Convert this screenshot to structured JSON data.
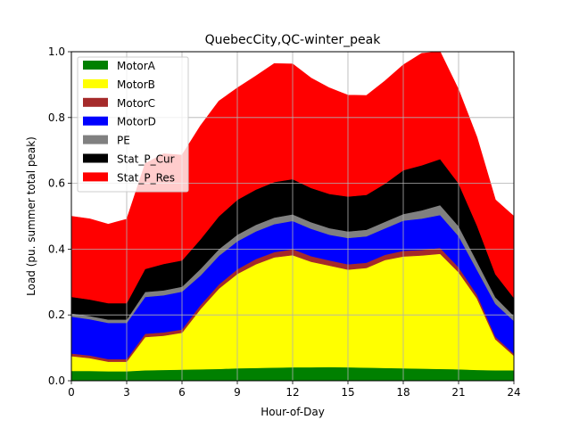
{
  "chart_data": {
    "type": "area",
    "stacked": true,
    "title": "QuebecCity,QC-winter_peak",
    "xlabel": "Hour-of-Day",
    "ylabel": "Load (pu. summer total peak)",
    "xlim": [
      0,
      24
    ],
    "ylim": [
      0,
      1.0
    ],
    "xticks": [
      0,
      3,
      6,
      9,
      12,
      15,
      18,
      21,
      24
    ],
    "yticks": [
      0.0,
      0.2,
      0.4,
      0.6,
      0.8,
      1.0
    ],
    "xtick_labels": [
      "0",
      "3",
      "6",
      "9",
      "12",
      "15",
      "18",
      "21",
      "24"
    ],
    "ytick_labels": [
      "0.0",
      "0.2",
      "0.4",
      "0.6",
      "0.8",
      "1.0"
    ],
    "grid": true,
    "legend_position": "top-left",
    "x": [
      0,
      1,
      2,
      3,
      4,
      5,
      6,
      7,
      8,
      9,
      10,
      11,
      12,
      13,
      14,
      15,
      16,
      17,
      18,
      19,
      20,
      21,
      22,
      23,
      24
    ],
    "series": [
      {
        "name": "MotorA",
        "color": "#008000",
        "values": [
          0.03,
          0.03,
          0.029,
          0.029,
          0.032,
          0.033,
          0.034,
          0.035,
          0.036,
          0.038,
          0.039,
          0.04,
          0.041,
          0.041,
          0.042,
          0.041,
          0.04,
          0.039,
          0.038,
          0.037,
          0.036,
          0.035,
          0.033,
          0.032,
          0.032
        ]
      },
      {
        "name": "MotorB",
        "color": "#ffff00",
        "values": [
          0.045,
          0.039,
          0.029,
          0.029,
          0.101,
          0.104,
          0.112,
          0.183,
          0.244,
          0.287,
          0.315,
          0.335,
          0.341,
          0.321,
          0.308,
          0.297,
          0.303,
          0.328,
          0.34,
          0.344,
          0.35,
          0.295,
          0.217,
          0.094,
          0.044
        ]
      },
      {
        "name": "MotorC",
        "color": "#a52a2a",
        "values": [
          0.008,
          0.008,
          0.008,
          0.008,
          0.01,
          0.01,
          0.01,
          0.012,
          0.013,
          0.014,
          0.016,
          0.016,
          0.018,
          0.017,
          0.016,
          0.016,
          0.016,
          0.016,
          0.017,
          0.017,
          0.018,
          0.015,
          0.012,
          0.008,
          0.006
        ]
      },
      {
        "name": "MotorD",
        "color": "#0000ff",
        "values": [
          0.112,
          0.11,
          0.11,
          0.11,
          0.112,
          0.113,
          0.115,
          0.09,
          0.087,
          0.085,
          0.084,
          0.085,
          0.086,
          0.083,
          0.078,
          0.08,
          0.08,
          0.08,
          0.092,
          0.095,
          0.1,
          0.095,
          0.075,
          0.1,
          0.1
        ]
      },
      {
        "name": "PE",
        "color": "#808080",
        "values": [
          0.01,
          0.01,
          0.01,
          0.01,
          0.015,
          0.015,
          0.015,
          0.02,
          0.02,
          0.02,
          0.02,
          0.02,
          0.02,
          0.02,
          0.02,
          0.02,
          0.02,
          0.02,
          0.02,
          0.025,
          0.03,
          0.03,
          0.025,
          0.02,
          0.015
        ]
      },
      {
        "name": "Stat_P_Cur",
        "color": "#000000",
        "values": [
          0.05,
          0.05,
          0.05,
          0.05,
          0.07,
          0.08,
          0.08,
          0.09,
          0.1,
          0.106,
          0.107,
          0.108,
          0.107,
          0.104,
          0.104,
          0.106,
          0.106,
          0.116,
          0.133,
          0.137,
          0.14,
          0.13,
          0.11,
          0.07,
          0.055
        ]
      },
      {
        "name": "Stat_P_Res",
        "color": "#ff0000",
        "values": [
          0.245,
          0.245,
          0.24,
          0.255,
          0.32,
          0.335,
          0.32,
          0.345,
          0.35,
          0.34,
          0.345,
          0.36,
          0.35,
          0.334,
          0.322,
          0.308,
          0.302,
          0.312,
          0.32,
          0.34,
          0.326,
          0.285,
          0.268,
          0.226,
          0.248
        ]
      }
    ]
  }
}
